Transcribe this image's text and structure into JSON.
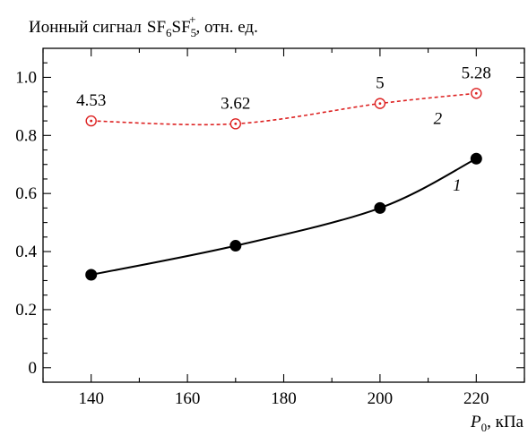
{
  "chart_data": {
    "type": "line",
    "ylabel": {
      "prefix": "Ионный сигнал",
      "formula_main_1": "SF",
      "formula_sub_1": "6",
      "formula_main_2": "SF",
      "formula_sub_2": "5",
      "formula_sup_2": "+",
      "suffix": ",  отн. ед."
    },
    "xlabel": {
      "var": "P",
      "var_sub": "0",
      "suffix": ", кПа"
    },
    "xlim": [
      130,
      230
    ],
    "ylim": [
      -0.05,
      1.1
    ],
    "xticks": [
      140,
      160,
      180,
      200,
      220
    ],
    "yticks": [
      0,
      0.2,
      0.4,
      0.6,
      0.8,
      1.0
    ],
    "ytick_labels": [
      "0",
      "0.2",
      "0.4",
      "0.6",
      "0.8",
      "1.0"
    ],
    "series": [
      {
        "name": "1",
        "x": [
          140,
          170,
          200,
          220
        ],
        "y": [
          0.32,
          0.42,
          0.55,
          0.72
        ],
        "color": "#000000",
        "style": "solid",
        "marker": "filled-circle",
        "label_pos": {
          "x": 216,
          "y": 0.61
        }
      },
      {
        "name": "2",
        "x": [
          140,
          170,
          200,
          220
        ],
        "y": [
          0.85,
          0.84,
          0.91,
          0.945
        ],
        "color": "#dd2222",
        "style": "dashed",
        "marker": "open-circle-dot",
        "label_pos": {
          "x": 212,
          "y": 0.84
        },
        "point_labels": [
          "4.53",
          "3.62",
          "5",
          "5.28"
        ]
      }
    ]
  }
}
